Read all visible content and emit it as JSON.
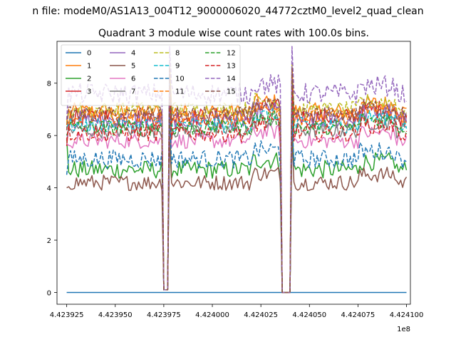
{
  "figure": {
    "suptitle": "n file: modeM0/AS1A13_004T12_9000006020_44772cztM0_level2_quad_clean",
    "title": "Quadrant 3 module wise count rates with 100.0s bins."
  },
  "chart_data": {
    "type": "line",
    "xlim": [
      442392000,
      442410200
    ],
    "ylim": [
      -0.45,
      9.6
    ],
    "x_offset_label": "1e8",
    "x_ticks": [
      442392500,
      442395000,
      442397500,
      442400000,
      442402500,
      442405000,
      442407500,
      442410000
    ],
    "x_tick_labels": [
      "4.423925",
      "4.423950",
      "4.423975",
      "4.424000",
      "4.424025",
      "4.424050",
      "4.424075",
      "4.424100"
    ],
    "y_ticks": [
      0,
      2,
      4,
      6,
      8
    ],
    "y_tick_labels": [
      "0",
      "2",
      "4",
      "6",
      "8"
    ],
    "x_start": 442392500,
    "x_end": 442410000,
    "bin_seconds": 100,
    "dropouts": [
      {
        "start": 442397500,
        "end": 442397700,
        "low": 0.1
      },
      {
        "start": 442403600,
        "end": 442404000,
        "low": 0.0
      }
    ],
    "legend": {
      "location": "upper left",
      "columns": 4
    },
    "series": [
      {
        "name": "0",
        "color": "#1f77b4",
        "style": "solid",
        "level": 0.0,
        "noise": 0.0,
        "start": 0.0
      },
      {
        "name": "1",
        "color": "#ff7f0e",
        "style": "solid",
        "level": 6.9,
        "noise": 0.35,
        "start": 6.4
      },
      {
        "name": "2",
        "color": "#2ca02c",
        "style": "solid",
        "level": 4.7,
        "noise": 0.35,
        "start": 5.9
      },
      {
        "name": "3",
        "color": "#d62728",
        "style": "solid",
        "level": 6.7,
        "noise": 0.35,
        "start": 5.6
      },
      {
        "name": "4",
        "color": "#9467bd",
        "style": "solid",
        "level": 6.6,
        "noise": 0.35,
        "start": 5.8
      },
      {
        "name": "5",
        "color": "#8c564b",
        "style": "solid",
        "level": 4.2,
        "noise": 0.3,
        "start": 4.0
      },
      {
        "name": "6",
        "color": "#e377c2",
        "style": "solid",
        "level": 5.8,
        "noise": 0.3,
        "start": 5.7
      },
      {
        "name": "7",
        "color": "#7f7f7f",
        "style": "solid",
        "level": 6.2,
        "noise": 0.3,
        "start": 6.0
      },
      {
        "name": "8",
        "color": "#bcbd22",
        "style": "dashed",
        "level": 7.0,
        "noise": 0.3,
        "start": 6.5
      },
      {
        "name": "9",
        "color": "#17becf",
        "style": "dashed",
        "level": 6.4,
        "noise": 0.3,
        "start": 6.3
      },
      {
        "name": "10",
        "color": "#1f77b4",
        "style": "dashed",
        "level": 5.1,
        "noise": 0.35,
        "start": 4.5
      },
      {
        "name": "11",
        "color": "#ff7f0e",
        "style": "dashed",
        "level": 6.7,
        "noise": 0.3,
        "start": 6.6
      },
      {
        "name": "12",
        "color": "#2ca02c",
        "style": "dashed",
        "level": 6.3,
        "noise": 0.3,
        "start": 6.0
      },
      {
        "name": "13",
        "color": "#d62728",
        "style": "dashed",
        "level": 6.1,
        "noise": 0.35,
        "start": 5.8
      },
      {
        "name": "14",
        "color": "#9467bd",
        "style": "dashed",
        "level": 7.6,
        "noise": 0.4,
        "start": 6.6
      },
      {
        "name": "15",
        "color": "#8c564b",
        "style": "dashed",
        "level": 6.8,
        "noise": 0.3,
        "start": 6.2
      }
    ]
  }
}
